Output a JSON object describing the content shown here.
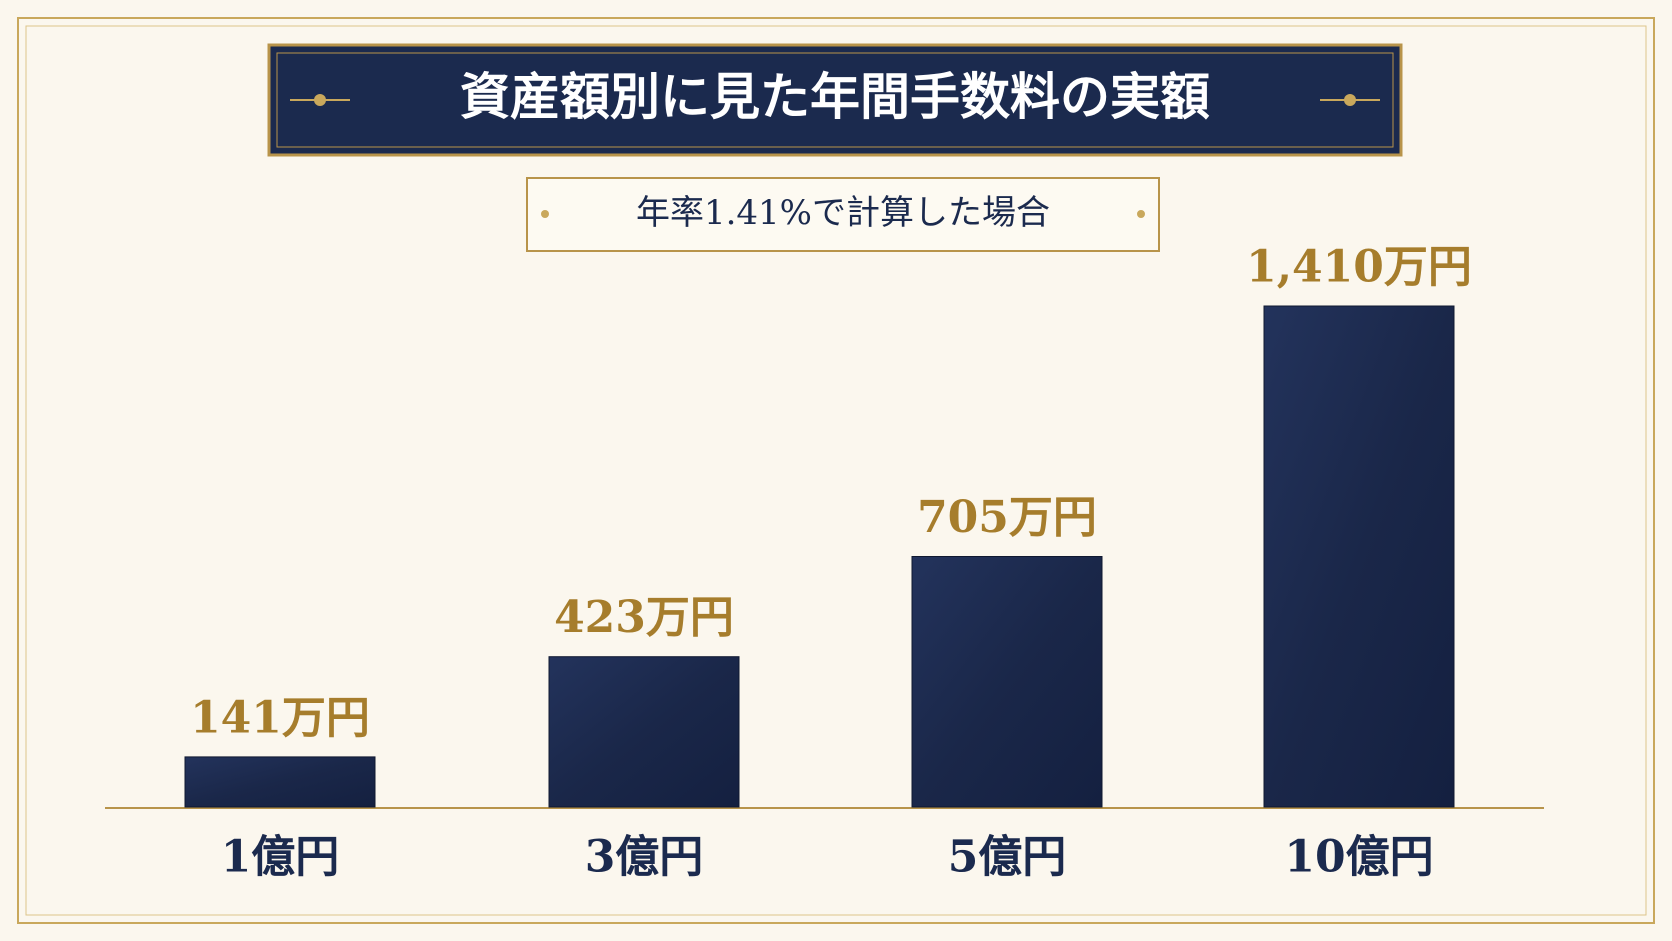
{
  "chart_data": {
    "type": "bar",
    "title": "資産額別に見た年間手数料の実額",
    "subtitle": "年率1.41%で計算した場合",
    "categories": [
      "1億円",
      "3億円",
      "5億円",
      "10億円"
    ],
    "values": [
      141,
      423,
      705,
      1410
    ],
    "value_labels": [
      "141万円",
      "423万円",
      "705万円",
      "1,410万円"
    ],
    "color": "#1c2a4f"
  }
}
